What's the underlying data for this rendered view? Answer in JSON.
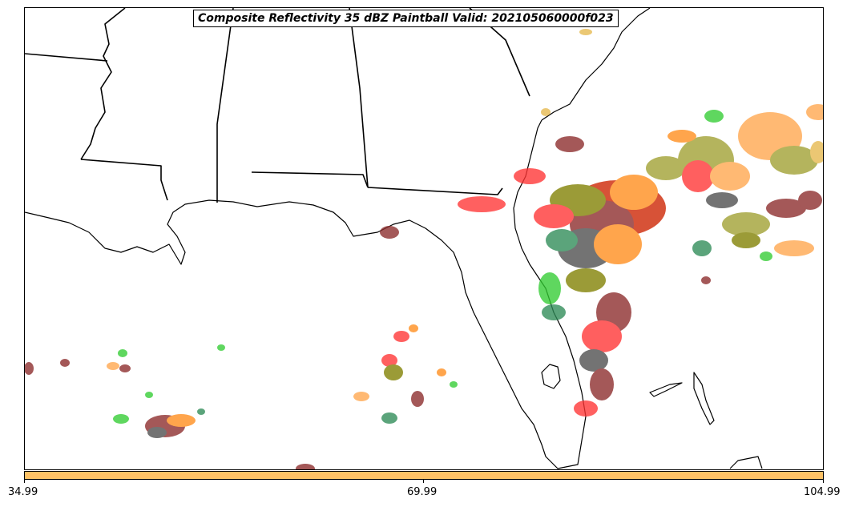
{
  "title": "Composite Reflectivity 35 dBZ Paintball Valid: 202105060000f023",
  "colorbar": {
    "color": "#ffc266",
    "ticks": [
      "34.99",
      "69.99",
      "104.99"
    ]
  },
  "map": {
    "region": "southeastern-us-gulf-of-mexico",
    "paintball_colors": [
      "#ff3333",
      "#ff8c1a",
      "#ffa64d",
      "#33cc33",
      "#2e8b57",
      "#808000",
      "#a0a030",
      "#8b2a2a",
      "#4d4d4d",
      "#cc2200",
      "#e6b84d"
    ]
  }
}
